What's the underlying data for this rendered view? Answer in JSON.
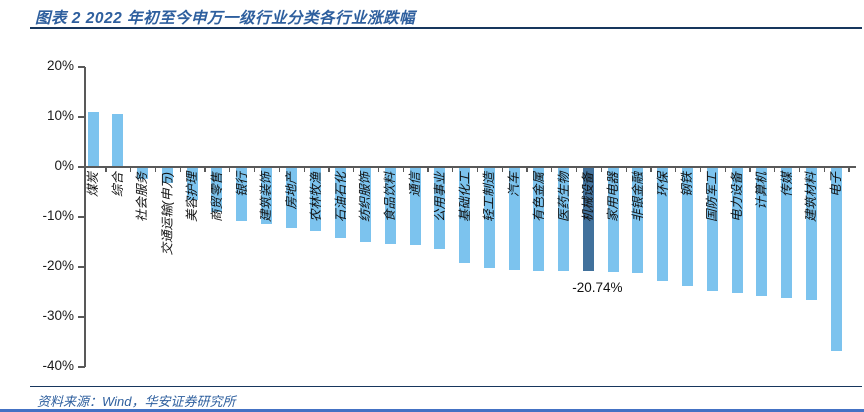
{
  "header": {
    "title": "图表 2 2022 年初至今申万一级行业分类各行业涨跌幅"
  },
  "footer": {
    "source": "资料来源：Wind，华安证券研究所"
  },
  "colors": {
    "accent_blue": "#2E5F9E",
    "bar": "#7CC3EE",
    "bar_highlight": "#41719C",
    "axis": "#595959",
    "tick_label": "#1a1a1a",
    "divider": "#17365D",
    "bottom_rule": "#4472C4"
  },
  "chart_data": {
    "type": "bar",
    "title": "图表 2 2022 年初至今申万一级行业分类各行业涨跌幅",
    "xlabel": "",
    "ylabel": "",
    "ylim": [
      -40,
      20
    ],
    "yticks": [
      20,
      10,
      0,
      -10,
      -20,
      -30,
      -40
    ],
    "ytick_labels": [
      "20%",
      "10%",
      "0%",
      "-10%",
      "-20%",
      "-30%",
      "-40%"
    ],
    "grid": false,
    "legend": false,
    "categories": [
      "煤炭",
      "综合",
      "社会服务",
      "交通运输(申万)",
      "美容护理",
      "商贸零售",
      "银行",
      "建筑装饰",
      "房地产",
      "农林牧渔",
      "石油石化",
      "纺织服饰",
      "食品饮料",
      "通信",
      "公用事业",
      "基础化工",
      "轻工制造",
      "汽车",
      "有色金属",
      "医药生物",
      "机械设备",
      "家用电器",
      "非银金融",
      "环保",
      "钢铁",
      "国防军工",
      "电力设备",
      "计算机",
      "传媒",
      "建筑材料",
      "电子"
    ],
    "values": [
      11.0,
      10.6,
      -2.3,
      -3.1,
      -6.5,
      -8.8,
      -10.7,
      -11.2,
      -12.0,
      -12.6,
      -14.0,
      -14.9,
      -15.2,
      -15.5,
      -16.3,
      -19.0,
      -20.1,
      -20.4,
      -20.6,
      -20.7,
      -20.74,
      -20.9,
      -21.1,
      -22.7,
      -23.7,
      -24.7,
      -25.0,
      -25.7,
      -26.1,
      -26.4,
      -36.7
    ],
    "highlight_index": 20,
    "highlight_label": "-20.74%"
  }
}
